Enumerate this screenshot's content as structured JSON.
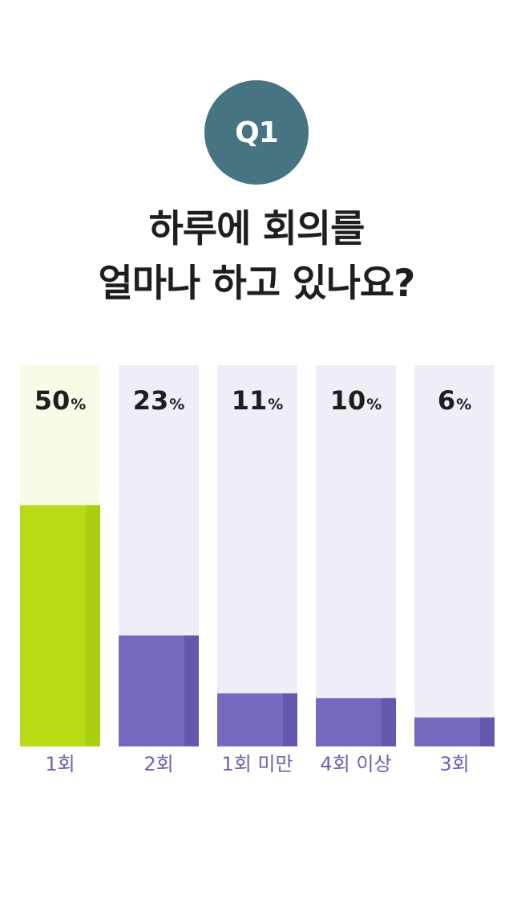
{
  "question": {
    "badge": "Q1",
    "title_line1": "하루에 회의를",
    "title_line2": "얼마나 하고 있나요?"
  },
  "colors": {
    "badge": "#467482",
    "track_default": "#efeef8",
    "fill_default": "#7369be",
    "fill_default_shade": "#6258ae",
    "track_highlight": "#f8fbe6",
    "fill_highlight": "#b7dc16",
    "fill_highlight_shade": "#a8cf10",
    "label": "#6a64b4"
  },
  "chart_data": {
    "type": "bar",
    "categories": [
      "1회",
      "2회",
      "1회 미만",
      "4회 이상",
      "3회"
    ],
    "values": [
      50,
      23,
      11,
      10,
      6
    ],
    "unit": "%",
    "highlight_index": 0,
    "ylim": [
      0,
      79
    ]
  }
}
